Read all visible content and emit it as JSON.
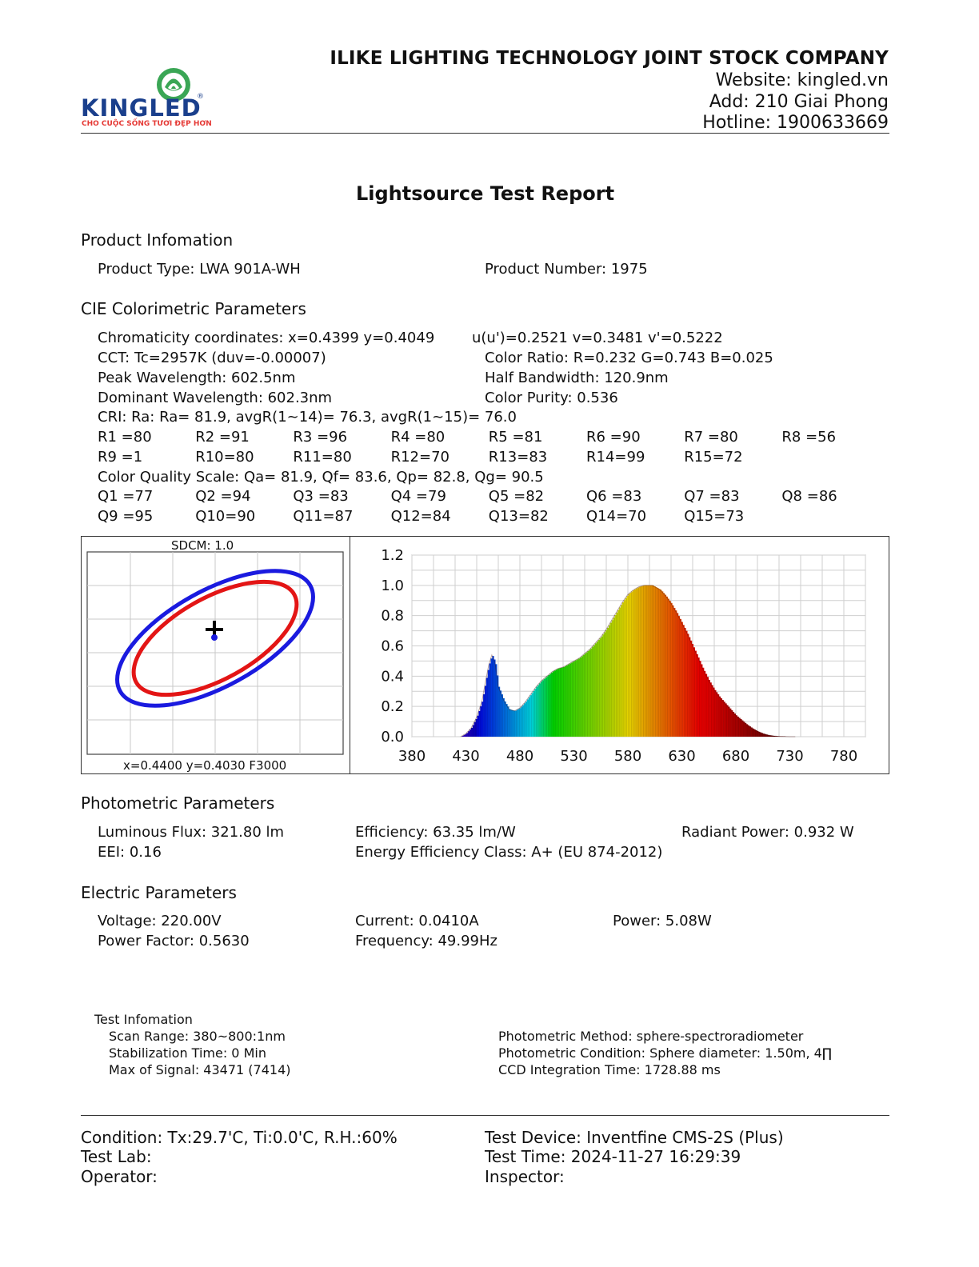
{
  "header": {
    "logo": {
      "brand": "KINGLED",
      "tagline": "CHO CUỘC SỐNG TƯƠI ĐẸP HƠN",
      "registered": "®",
      "colors": {
        "brand_blue": "#1a3f8c",
        "accent_red": "#e53935",
        "leaf_green": "#3aa655"
      }
    },
    "company": "ILIKE LIGHTING TECHNOLOGY JOINT STOCK COMPANY",
    "website": "Website: kingled.vn",
    "address": "Add: 210 Giai Phong",
    "hotline": "Hotline: 1900633669"
  },
  "report_title": "Lightsource Test Report",
  "product": {
    "heading": "Product Infomation",
    "type": "Product Type: LWA 901A-WH",
    "number": "Product Number: 1975"
  },
  "cie": {
    "heading": "CIE Colorimetric Parameters",
    "chromaticity": "Chromaticity coordinates: x=0.4399 y=0.4049",
    "uv": "u(u')=0.2521 v=0.3481 v'=0.5222",
    "cct": "CCT: Tc=2957K (duv=-0.00007)",
    "color_ratio": "Color Ratio: R=0.232  G=0.743  B=0.025",
    "peak": "Peak Wavelength: 602.5nm",
    "half_bw": "Half Bandwidth: 120.9nm",
    "dominant": "Dominant Wavelength: 602.3nm",
    "purity": "Color Purity: 0.536",
    "cri": "CRI: Ra: Ra= 81.9, avgR(1~14)= 76.3, avgR(1~15)= 76.0",
    "r_values": [
      "R1 =80",
      "R2 =91",
      "R3 =96",
      "R4 =80",
      "R5 =81",
      "R6 =90",
      "R7 =80",
      "R8 =56",
      "R9 =1",
      "R10=80",
      "R11=80",
      "R12=70",
      "R13=83",
      "R14=99",
      "R15=72"
    ],
    "cqs": "Color Quality Scale: Qa= 81.9, Qf= 83.6, Qp= 82.8, Qg= 90.5",
    "q_values": [
      "Q1 =77",
      "Q2 =94",
      "Q3 =83",
      "Q4 =79",
      "Q5 =82",
      "Q6 =83",
      "Q7 =83",
      "Q8 =86",
      "Q9 =95",
      "Q10=90",
      "Q11=87",
      "Q12=84",
      "Q13=82",
      "Q14=70",
      "Q15=73"
    ]
  },
  "sdcm_panel": {
    "label": "SDCM:   1.0",
    "footer": "x=0.4400 y=0.4030 F3000",
    "colors": {
      "outer": "#1a1adf",
      "inner": "#e31515",
      "marker": "#000000",
      "point": "#1a1adf"
    }
  },
  "chart_data": {
    "type": "area",
    "title": "",
    "xlabel": "",
    "ylabel": "",
    "xlim": [
      380,
      800
    ],
    "ylim": [
      0,
      1.2
    ],
    "x_ticks": [
      "380",
      "430",
      "480",
      "530",
      "580",
      "630",
      "680",
      "730",
      "780"
    ],
    "y_ticks": [
      "1.2",
      "1.0",
      "0.8",
      "0.6",
      "0.4",
      "0.2",
      "0.0"
    ],
    "grid": true,
    "fill": "spectral colors by wavelength",
    "x": [
      425,
      430,
      435,
      440,
      445,
      448,
      451,
      454,
      457,
      460,
      465,
      470,
      475,
      480,
      485,
      490,
      495,
      500,
      505,
      510,
      515,
      520,
      525,
      530,
      535,
      540,
      545,
      550,
      555,
      560,
      565,
      570,
      575,
      580,
      585,
      590,
      595,
      600,
      602.5,
      605,
      610,
      615,
      620,
      625,
      630,
      635,
      640,
      645,
      650,
      655,
      660,
      665,
      670,
      675,
      680,
      685,
      690,
      695,
      700,
      705,
      710,
      715,
      720,
      725,
      730,
      735
    ],
    "y": [
      0,
      0.02,
      0.06,
      0.13,
      0.24,
      0.36,
      0.47,
      0.54,
      0.49,
      0.33,
      0.24,
      0.18,
      0.17,
      0.19,
      0.23,
      0.28,
      0.33,
      0.37,
      0.4,
      0.43,
      0.45,
      0.46,
      0.48,
      0.5,
      0.52,
      0.55,
      0.58,
      0.62,
      0.66,
      0.71,
      0.77,
      0.83,
      0.89,
      0.94,
      0.97,
      0.99,
      1.0,
      1.0,
      1.0,
      0.99,
      0.97,
      0.93,
      0.88,
      0.82,
      0.75,
      0.68,
      0.6,
      0.52,
      0.44,
      0.37,
      0.31,
      0.26,
      0.22,
      0.18,
      0.14,
      0.11,
      0.08,
      0.055,
      0.035,
      0.02,
      0.01,
      0.005,
      0.002,
      0.001,
      0.0,
      0.0
    ]
  },
  "photometric": {
    "heading": "Photometric Parameters",
    "flux": "Luminous Flux: 321.80 lm",
    "efficiency": "Efficiency: 63.35 lm/W",
    "radiant": "Radiant Power: 0.932 W",
    "eei": "EEI:  0.16",
    "eclass": "Energy Efficiency Class: A+ (EU 874-2012)"
  },
  "electric": {
    "heading": "Electric Parameters",
    "voltage": "Voltage: 220.00V",
    "current": "Current: 0.0410A",
    "power": "Power: 5.08W",
    "pf": "Power Factor: 0.5630",
    "freq": "Frequency: 49.99Hz"
  },
  "test_info": {
    "heading": "Test Infomation",
    "scan": "Scan Range: 380~800:1nm",
    "stab": "Stabilization Time: 0 Min",
    "max": "Max of Signal: 43471 (7414)",
    "method": "Photometric Method: sphere-spectroradiometer",
    "condition": "Photometric Condition: Sphere diameter: 1.50m, 4∏",
    "ccd": "CCD Integration Time: 1728.88 ms"
  },
  "footer": {
    "condition": "Condition: Tx:29.7'C, Ti:0.0'C, R.H.:60%",
    "device": "Test Device: Inventfine CMS-2S (Plus)",
    "lab": "Test Lab:",
    "time": "Test Time: 2024-11-27 16:29:39",
    "operator": "Operator:",
    "inspector": "Inspector:"
  }
}
